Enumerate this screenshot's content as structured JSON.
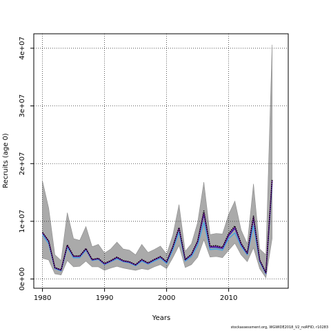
{
  "chart_data": {
    "type": "line",
    "title": "",
    "xlabel": "Years",
    "ylabel": "Recruits (age 0)",
    "xlim": [
      1978.6,
      2019.6
    ],
    "ylim": [
      -1600000,
      42500000
    ],
    "x_ticks": [
      1980,
      1990,
      2000,
      2010
    ],
    "x_tick_labels": [
      "1980",
      "1990",
      "2000",
      "2010"
    ],
    "y_ticks": [
      0,
      10000000,
      20000000,
      30000000,
      40000000
    ],
    "y_tick_labels": [
      "0e+00",
      "1e+07",
      "2e+07",
      "3e+07",
      "4e+07"
    ],
    "grid": true,
    "x": [
      1980,
      1981,
      1982,
      1983,
      1984,
      1985,
      1986,
      1987,
      1988,
      1989,
      1990,
      1991,
      1992,
      1993,
      1994,
      1995,
      1996,
      1997,
      1998,
      1999,
      2000,
      2001,
      2002,
      2003,
      2004,
      2005,
      2006,
      2007,
      2008,
      2009,
      2010,
      2011,
      2012,
      2013,
      2014,
      2015,
      2016,
      2017
    ],
    "series": [
      {
        "color": "#aaaaaa",
        "style": "band",
        "lower": [
          3600000,
          3300000,
          900000,
          700000,
          3200000,
          2100000,
          2200000,
          3100000,
          2100000,
          2100000,
          1500000,
          1900000,
          2200000,
          1900000,
          1700000,
          1500000,
          1800000,
          1600000,
          2100000,
          2500000,
          1800000,
          3700000,
          5800000,
          2000000,
          2500000,
          3800000,
          6800000,
          3800000,
          3900000,
          3700000,
          5000000,
          6200000,
          4200000,
          3000000,
          5400000,
          1800000,
          200000,
          7000000
        ],
        "upper": [
          17000000,
          12300000,
          4200000,
          3200000,
          11500000,
          7000000,
          6700000,
          9100000,
          5600000,
          6000000,
          4500000,
          5200000,
          6400000,
          5200000,
          5000000,
          4200000,
          6000000,
          4600000,
          5100000,
          5700000,
          4300000,
          7600000,
          12900000,
          4800000,
          6100000,
          9800000,
          16800000,
          7700000,
          7900000,
          7800000,
          11200000,
          13500000,
          8500000,
          6100000,
          16500000,
          5200000,
          4200000,
          40600000
        ]
      },
      {
        "color": "#4aa3df",
        "style": "solid",
        "values": [
          7700000,
          6100000,
          1800000,
          1400000,
          5500000,
          3700000,
          3700000,
          5000000,
          3200000,
          3400000,
          2500000,
          3000000,
          3500000,
          3000000,
          2800000,
          2300000,
          3100000,
          2600000,
          3100000,
          3600000,
          2700000,
          5000000,
          8100000,
          3100000,
          3900000,
          5800000,
          9800000,
          5100000,
          5200000,
          5000000,
          7000000,
          8000000,
          5700000,
          4200000,
          9200000,
          3000000,
          900000,
          16500000
        ]
      },
      {
        "color": "#2c2ca8",
        "style": "solid",
        "values": [
          8000000,
          6500000,
          1900000,
          1500000,
          5800000,
          3900000,
          3900000,
          5200000,
          3300000,
          3500000,
          2600000,
          3100000,
          3700000,
          3100000,
          2900000,
          2400000,
          3300000,
          2700000,
          3300000,
          3800000,
          2900000,
          5500000,
          8800000,
          3300000,
          4200000,
          6400000,
          11200000,
          5500000,
          5500000,
          5300000,
          7500000,
          8800000,
          6000000,
          4400000,
          10500000,
          3200000,
          1000000,
          17000000
        ]
      },
      {
        "color": "#7b1fa2",
        "style": "solid",
        "values": [
          8050000,
          6550000,
          1950000,
          1550000,
          5850000,
          3950000,
          3950000,
          5250000,
          3350000,
          3550000,
          2650000,
          3150000,
          3750000,
          3150000,
          2950000,
          2450000,
          3350000,
          2750000,
          3350000,
          3850000,
          2950000,
          5550000,
          8850000,
          3350000,
          4250000,
          6500000,
          11500000,
          5600000,
          5650000,
          5400000,
          7700000,
          9000000,
          6100000,
          4450000,
          10700000,
          3250000,
          1050000,
          17100000
        ]
      },
      {
        "color": "#000000",
        "style": "dotted",
        "values": [
          8100000,
          6600000,
          2000000,
          1600000,
          5900000,
          4000000,
          4000000,
          5300000,
          3400000,
          3600000,
          2700000,
          3200000,
          3800000,
          3200000,
          3000000,
          2500000,
          3400000,
          2800000,
          3400000,
          3900000,
          3000000,
          5600000,
          8900000,
          3400000,
          4300000,
          6600000,
          11800000,
          5700000,
          5800000,
          5500000,
          7900000,
          9200000,
          6200000,
          4500000,
          10900000,
          3300000,
          1100000,
          17200000
        ]
      }
    ]
  },
  "footer": "stockassessment.org, WGWIDE2018_V2_noRFID, r10283"
}
